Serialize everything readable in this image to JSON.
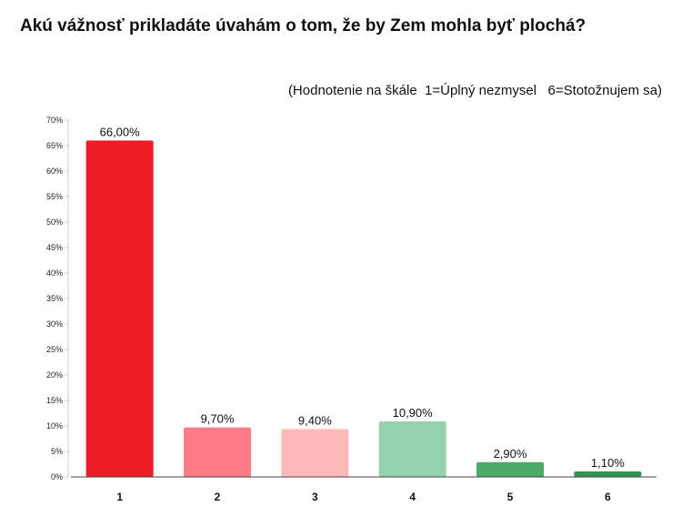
{
  "chart_data": {
    "type": "bar",
    "title": "Akú vážnosť prikladáte úvahám o tom, že by Zem mohla byť plochá?",
    "subtitle": "(Hodnotenie na škále  1=Úplný nezmysel   6=Stotožnujem sa)",
    "categories": [
      "1",
      "2",
      "3",
      "4",
      "5",
      "6"
    ],
    "values": [
      66.0,
      9.7,
      9.4,
      10.9,
      2.9,
      1.1
    ],
    "data_labels": [
      "66,00%",
      "9,70%",
      "9,40%",
      "10,90%",
      "2,90%",
      "1,10%"
    ],
    "colors": [
      "#ee1c25",
      "#ff7b86",
      "#ffb9b9",
      "#94d1ad",
      "#4aab6b",
      "#2e9650"
    ],
    "ylim": [
      0,
      70
    ],
    "yticks": [
      "0%",
      "5%",
      "10%",
      "15%",
      "20%",
      "25%",
      "30%",
      "35%",
      "40%",
      "45%",
      "50%",
      "55%",
      "60%",
      "65%",
      "70%"
    ],
    "xlabel": "",
    "ylabel": "",
    "grid": false
  }
}
